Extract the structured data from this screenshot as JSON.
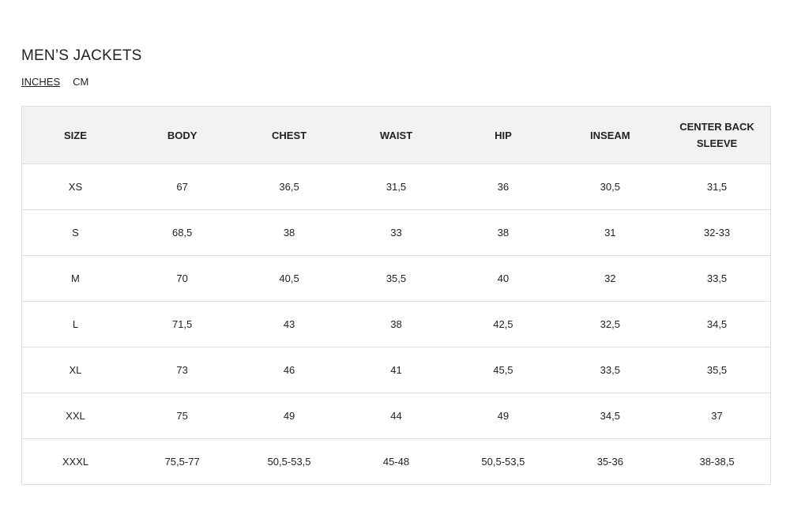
{
  "title": "MEN’S JACKETS",
  "units": {
    "options": [
      "INCHES",
      "CM"
    ],
    "selected": "INCHES"
  },
  "table": {
    "headers": [
      "SIZE",
      "BODY",
      "CHEST",
      "WAIST",
      "HIP",
      "INSEAM",
      "CENTER BACK SLEEVE"
    ],
    "rows": [
      [
        "XS",
        "67",
        "36,5",
        "31,5",
        "36",
        "30,5",
        "31,5"
      ],
      [
        "S",
        "68,5",
        "38",
        "33",
        "38",
        "31",
        "32-33"
      ],
      [
        "M",
        "70",
        "40,5",
        "35,5",
        "40",
        "32",
        "33,5"
      ],
      [
        "L",
        "71,5",
        "43",
        "38",
        "42,5",
        "32,5",
        "34,5"
      ],
      [
        "XL",
        "73",
        "46",
        "41",
        "45,5",
        "33,5",
        "35,5"
      ],
      [
        "XXL",
        "75",
        "49",
        "44",
        "49",
        "34,5",
        "37"
      ],
      [
        "XXXL",
        "75,5-77",
        "50,5-53,5",
        "45-48",
        "50,5-53,5",
        "35-36",
        "38-38,5"
      ]
    ]
  }
}
